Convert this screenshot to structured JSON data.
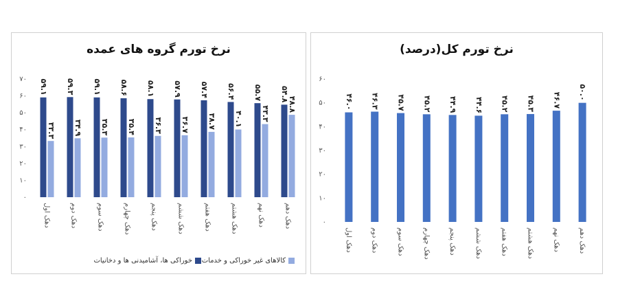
{
  "colors": {
    "food": "#2e4a8c",
    "nonfood": "#93abe0",
    "total": "#4472c4",
    "axis_text": "#555555",
    "grid": "#d9d9d9"
  },
  "chart_data": [
    {
      "type": "bar",
      "title": "نرخ تورم گروه های عمده",
      "categories": [
        "دهک اول",
        "دهک دوم",
        "دهک سوم",
        "دهک چهارم",
        "دهک پنجم",
        "دهک ششم",
        "دهک هفتم",
        "دهک هشتم",
        "دهک نهم",
        "دهک دهم"
      ],
      "series": [
        {
          "name": "خوراکی ها، آشامیدنی ها و دخانیات",
          "values": [
            59.1,
            59.3,
            59.1,
            58.6,
            58.1,
            57.9,
            57.4,
            56.4,
            55.7,
            54.8
          ],
          "labels": [
            "۵۹.۱",
            "۵۹.۳",
            "۵۹.۱",
            "۵۸.۶",
            "۵۸.۱",
            "۵۷.۹",
            "۵۷.۴",
            "۵۶.۴",
            "۵۵.۷",
            "۵۴.۸"
          ]
        },
        {
          "name": "کالاهای غیر خوراکی و خدمات",
          "values": [
            33.3,
            34.9,
            35.3,
            35.4,
            36.3,
            36.7,
            38.7,
            40.1,
            43.3,
            48.8
          ],
          "labels": [
            "۳۳.۳",
            "۳۴.۹",
            "۳۵.۳",
            "۳۵.۴",
            "۳۶.۳",
            "۳۶.۷",
            "۳۸.۷",
            "۴۰.۱",
            "۴۳.۳",
            "۴۸.۸"
          ]
        }
      ],
      "ylim": [
        0,
        70
      ],
      "yticks": [
        0,
        10,
        20,
        30,
        40,
        50,
        60,
        70
      ],
      "ytick_labels": [
        "۰",
        "۱۰",
        "۲۰",
        "۳۰",
        "۴۰",
        "۵۰",
        "۶۰",
        "۷۰"
      ],
      "legend_position": "bottom",
      "grid": false
    },
    {
      "type": "bar",
      "title": "نرخ تورم کل(درصد)",
      "categories": [
        "دهک اول",
        "دهک دوم",
        "دهک سوم",
        "دهک چهارم",
        "دهک پنجم",
        "دهک ششم",
        "دهک هفتم",
        "دهک هشتم",
        "دهک نهم",
        "دهک دهم"
      ],
      "values": [
        46.0,
        46.3,
        45.7,
        45.2,
        44.9,
        44.6,
        45.2,
        45.3,
        46.7,
        50.0
      ],
      "labels": [
        "۴۶.۰",
        "۴۶.۳",
        "۴۵.۷",
        "۴۵.۲",
        "۴۴.۹",
        "۴۴.۶",
        "۴۵.۲",
        "۴۵.۳",
        "۴۶.۷",
        "۵۰.۰"
      ],
      "ylim": [
        0,
        60
      ],
      "yticks": [
        0,
        10,
        20,
        30,
        40,
        50,
        60
      ],
      "ytick_labels": [
        "۰",
        "۱۰",
        "۲۰",
        "۳۰",
        "۴۰",
        "۵۰",
        "۶۰"
      ],
      "grid": false
    }
  ]
}
